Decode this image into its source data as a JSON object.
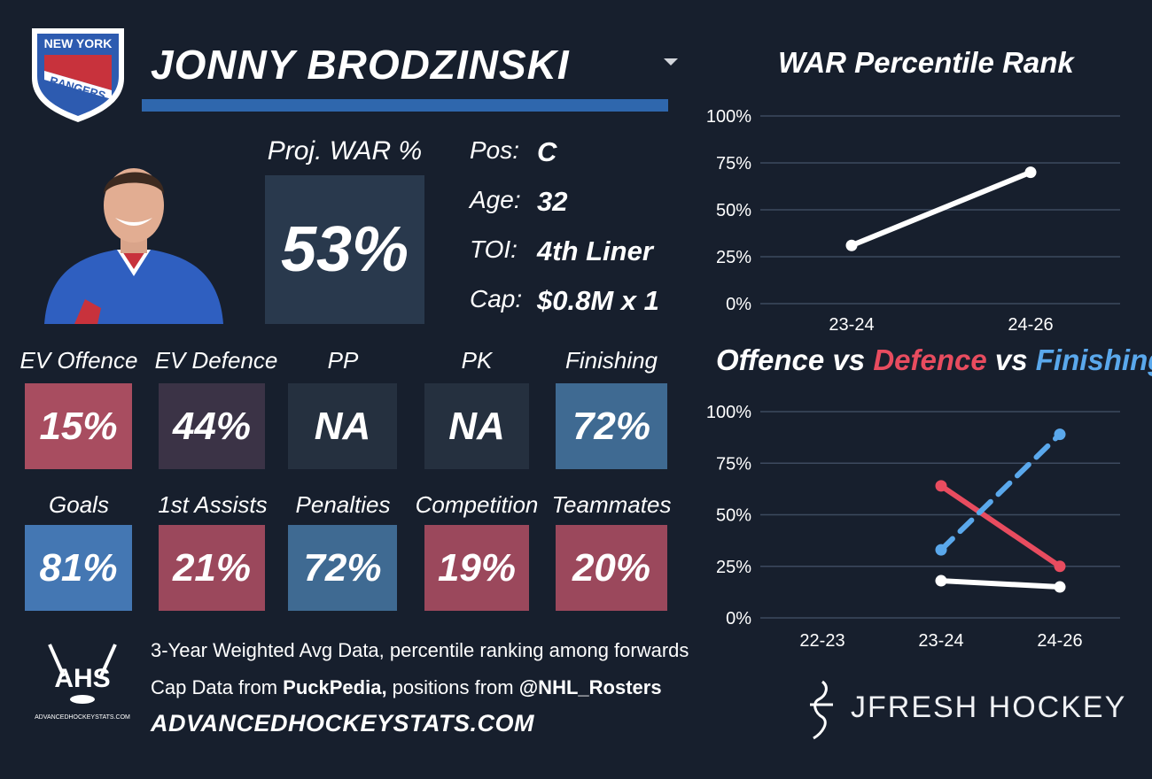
{
  "header": {
    "team_logo": "new-york-rangers-logo",
    "team_logo_text": [
      "NEW YORK",
      "RANGERS"
    ],
    "player_name": "JONNY BRODZINSKI"
  },
  "projection": {
    "label": "Proj. WAR %",
    "value": "53%"
  },
  "info": [
    {
      "key": "Pos:",
      "value": "C"
    },
    {
      "key": "Age:",
      "value": "32"
    },
    {
      "key": "TOI:",
      "value": "4th Liner"
    },
    {
      "key": "Cap:",
      "value": "$0.8M x 1"
    }
  ],
  "tiles_row1": [
    {
      "label": "EV Offence",
      "value": "15%",
      "color": "#a84d60"
    },
    {
      "label": "EV Defence",
      "value": "44%",
      "color": "#3b3346"
    },
    {
      "label": "PP",
      "value": "NA",
      "color": "#25303f"
    },
    {
      "label": "PK",
      "value": "NA",
      "color": "#25303f"
    },
    {
      "label": "Finishing",
      "value": "72%",
      "color": "#3f6a92"
    }
  ],
  "tiles_row2": [
    {
      "label": "Goals",
      "value": "81%",
      "color": "#4477b3"
    },
    {
      "label": "1st Assists",
      "value": "21%",
      "color": "#9b485c"
    },
    {
      "label": "Penalties",
      "value": "72%",
      "color": "#3f6a92"
    },
    {
      "label": "Competition",
      "value": "19%",
      "color": "#9b485c"
    },
    {
      "label": "Teammates",
      "value": "20%",
      "color": "#9b485c"
    }
  ],
  "footer": {
    "line1": "3-Year Weighted Avg Data, percentile ranking among forwards",
    "line2_prefix": "Cap Data from ",
    "line2_source": "PuckPedia,",
    "line2_middle": " positions from ",
    "line2_handle": "@NHL_Rosters",
    "url": "ADVANCEDHOCKEYSTATS.COM",
    "ahs_logo_text": "AHS",
    "ahs_logo_subtext": "ADVANCEDHOCKEYSTATS.COM",
    "brand": "JFRESH HOCKEY"
  },
  "colors": {
    "background": "#171f2d",
    "accent_blue": "#2f67ad",
    "offence": "#ffffff",
    "defence": "#e84c5f",
    "finishing": "#5aa8ec"
  },
  "chart_data": [
    {
      "type": "line",
      "title": "WAR Percentile Rank",
      "x": [
        "23-24",
        "24-26"
      ],
      "series": [
        {
          "values": [
            31,
            70
          ],
          "color": "#ffffff"
        }
      ],
      "yticks": [
        "0%",
        "25%",
        "50%",
        "75%",
        "100%"
      ],
      "ylim": [
        0,
        100
      ],
      "grid": true
    },
    {
      "type": "line",
      "title_parts": [
        {
          "text": "Offence",
          "color": "#ffffff"
        },
        {
          "text": " vs ",
          "color": "#ffffff"
        },
        {
          "text": "Defence",
          "color": "#e84c5f"
        },
        {
          "text": " vs ",
          "color": "#ffffff"
        },
        {
          "text": "Finishing",
          "color": "#5aa8ec"
        }
      ],
      "x": [
        "22-23",
        "23-24",
        "24-26"
      ],
      "series": [
        {
          "name": "Offence",
          "values": [
            null,
            18,
            15
          ],
          "color": "#ffffff",
          "dashed": false
        },
        {
          "name": "Defence",
          "values": [
            null,
            64,
            25
          ],
          "color": "#e84c5f",
          "dashed": false
        },
        {
          "name": "Finishing",
          "values": [
            null,
            33,
            89
          ],
          "color": "#5aa8ec",
          "dashed": true
        }
      ],
      "yticks": [
        "0%",
        "25%",
        "50%",
        "75%",
        "100%"
      ],
      "ylim": [
        0,
        100
      ],
      "grid": true
    }
  ]
}
